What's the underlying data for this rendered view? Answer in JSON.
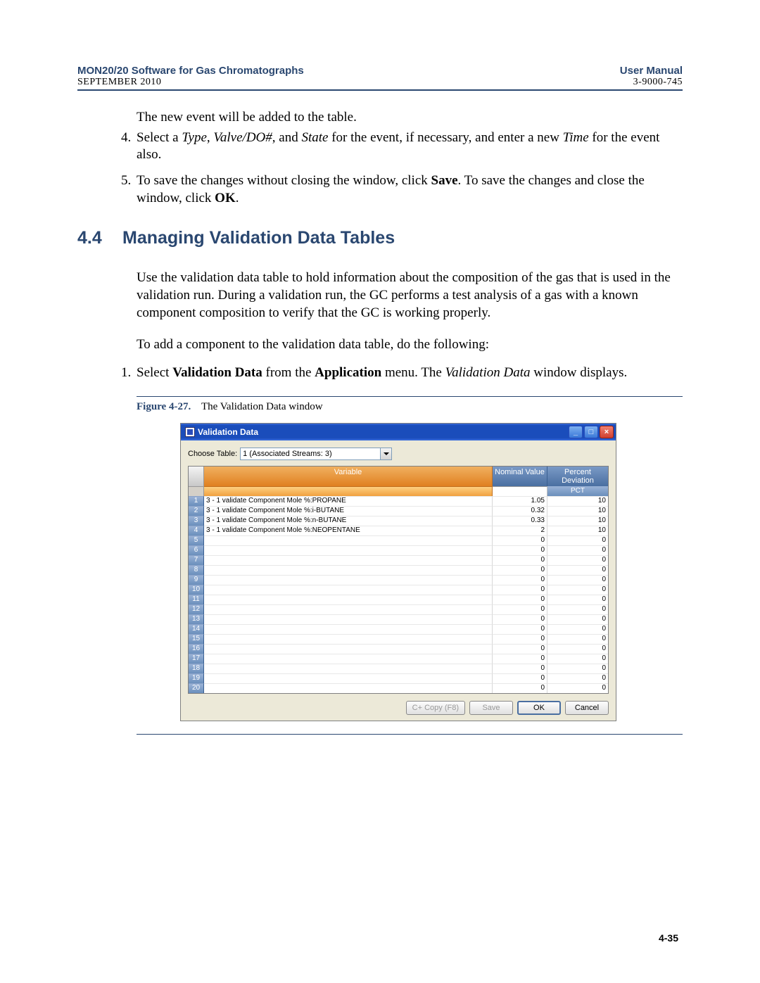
{
  "header": {
    "title_left": "MON20/20 Software for Gas Chromatographs",
    "sub_left": "SEPTEMBER 2010",
    "title_right": "User Manual",
    "sub_right": "3-9000-745"
  },
  "intro_line": "The new event will be added to the table.",
  "steps_top": [
    {
      "num": "4.",
      "parts": [
        "Select a ",
        [
          "i",
          "Type"
        ],
        ", ",
        [
          "i",
          "Valve/DO#"
        ],
        ", and ",
        [
          "i",
          "State"
        ],
        " for the event, if necessary, and enter a new ",
        [
          "i",
          "Time"
        ],
        " for the event also."
      ]
    },
    {
      "num": "5.",
      "parts": [
        "To save the changes without closing the window, click ",
        [
          "b",
          "Save"
        ],
        ". To save the changes and close the window, click ",
        [
          "b",
          "OK"
        ],
        "."
      ]
    }
  ],
  "section": {
    "num": "4.4",
    "title": "Managing Validation Data Tables"
  },
  "para1": "Use the validation data table to hold information about the composition of the gas that is used in the validation run.  During a validation run, the GC performs a test analysis of a gas with a known component composition to verify that the GC is working properly.",
  "para2": "To add a component to the validation data table, do the following:",
  "steps_main": [
    {
      "num": "1.",
      "parts": [
        "Select ",
        [
          "b",
          "Validation Data"
        ],
        " from the ",
        [
          "b",
          "Application"
        ],
        " menu.  The ",
        [
          "i",
          "Validation Data"
        ],
        " window displays."
      ]
    }
  ],
  "figure": {
    "num": "Figure 4-27.",
    "caption": "The Validation Data window"
  },
  "window": {
    "title": "Validation Data",
    "choose_label": "Choose Table:",
    "choose_value": "1 (Associated Streams: 3)",
    "columns": {
      "variable": "Variable",
      "nominal": "Nominal Value",
      "pct": "Percent Deviation",
      "pct_sub": "PCT"
    },
    "rows": [
      {
        "n": 1,
        "variable": "3 - 1 validate Component Mole %:PROPANE",
        "nominal": "1.05",
        "pct": "10"
      },
      {
        "n": 2,
        "variable": "3 - 1 validate Component Mole %:i-BUTANE",
        "nominal": "0.32",
        "pct": "10"
      },
      {
        "n": 3,
        "variable": "3 - 1 validate Component Mole %:n-BUTANE",
        "nominal": "0.33",
        "pct": "10"
      },
      {
        "n": 4,
        "variable": "3 - 1 validate Component Mole %:NEOPENTANE",
        "nominal": "2",
        "pct": "10"
      },
      {
        "n": 5,
        "variable": "",
        "nominal": "0",
        "pct": "0"
      },
      {
        "n": 6,
        "variable": "",
        "nominal": "0",
        "pct": "0"
      },
      {
        "n": 7,
        "variable": "",
        "nominal": "0",
        "pct": "0"
      },
      {
        "n": 8,
        "variable": "",
        "nominal": "0",
        "pct": "0"
      },
      {
        "n": 9,
        "variable": "",
        "nominal": "0",
        "pct": "0"
      },
      {
        "n": 10,
        "variable": "",
        "nominal": "0",
        "pct": "0"
      },
      {
        "n": 11,
        "variable": "",
        "nominal": "0",
        "pct": "0"
      },
      {
        "n": 12,
        "variable": "",
        "nominal": "0",
        "pct": "0"
      },
      {
        "n": 13,
        "variable": "",
        "nominal": "0",
        "pct": "0"
      },
      {
        "n": 14,
        "variable": "",
        "nominal": "0",
        "pct": "0"
      },
      {
        "n": 15,
        "variable": "",
        "nominal": "0",
        "pct": "0"
      },
      {
        "n": 16,
        "variable": "",
        "nominal": "0",
        "pct": "0"
      },
      {
        "n": 17,
        "variable": "",
        "nominal": "0",
        "pct": "0"
      },
      {
        "n": 18,
        "variable": "",
        "nominal": "0",
        "pct": "0"
      },
      {
        "n": 19,
        "variable": "",
        "nominal": "0",
        "pct": "0"
      },
      {
        "n": 20,
        "variable": "",
        "nominal": "0",
        "pct": "0"
      }
    ],
    "buttons": {
      "copy": "C+ Copy (F8)",
      "save": "Save",
      "ok": "OK",
      "cancel": "Cancel"
    }
  },
  "page_number": "4-35"
}
